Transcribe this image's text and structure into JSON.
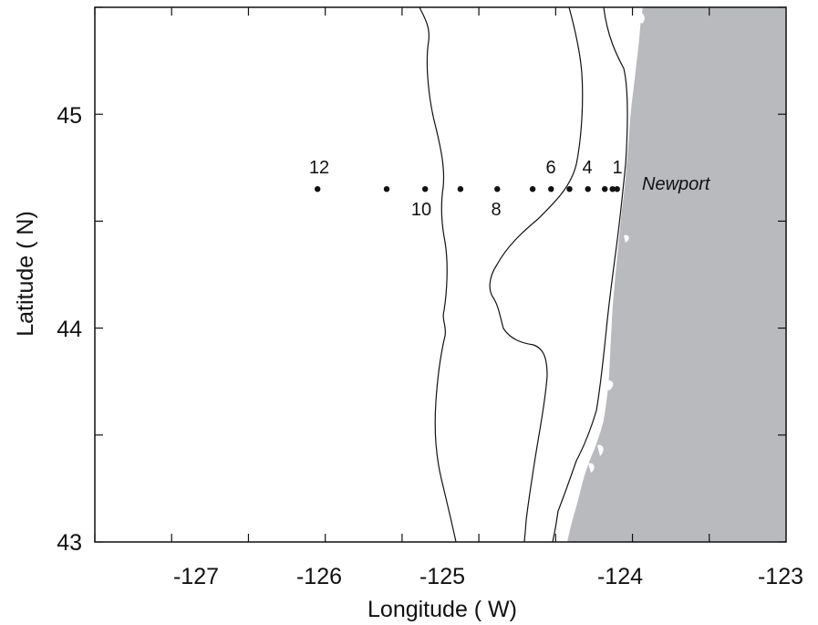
{
  "map": {
    "xlabel": "Longitude ( W)",
    "ylabel": "Latitude ( N)",
    "xlim": [
      -127.5,
      -123
    ],
    "ylim": [
      43,
      45.5
    ],
    "x_ticks": [
      "-127",
      "-126",
      "-125",
      "-124",
      "-123"
    ],
    "y_ticks": [
      "43",
      "44",
      "45"
    ],
    "land_color": "#b9babd",
    "place_label": "Newport",
    "place_location": {
      "lon": -123.98,
      "lat": 44.66
    },
    "station_line_lat": 44.65,
    "stations": [
      {
        "lon": -126.05,
        "label": "12"
      },
      {
        "lon": -125.6,
        "label": ""
      },
      {
        "lon": -125.35,
        "label": "10"
      },
      {
        "lon": -125.12,
        "label": ""
      },
      {
        "lon": -124.88,
        "label": "8"
      },
      {
        "lon": -124.65,
        "label": ""
      },
      {
        "lon": -124.53,
        "label": "6"
      },
      {
        "lon": -124.41,
        "label": ""
      },
      {
        "lon": -124.29,
        "label": "4"
      },
      {
        "lon": -124.18,
        "label": ""
      },
      {
        "lon": -124.13,
        "label": ""
      },
      {
        "lon": -124.1,
        "label": "1"
      }
    ]
  }
}
